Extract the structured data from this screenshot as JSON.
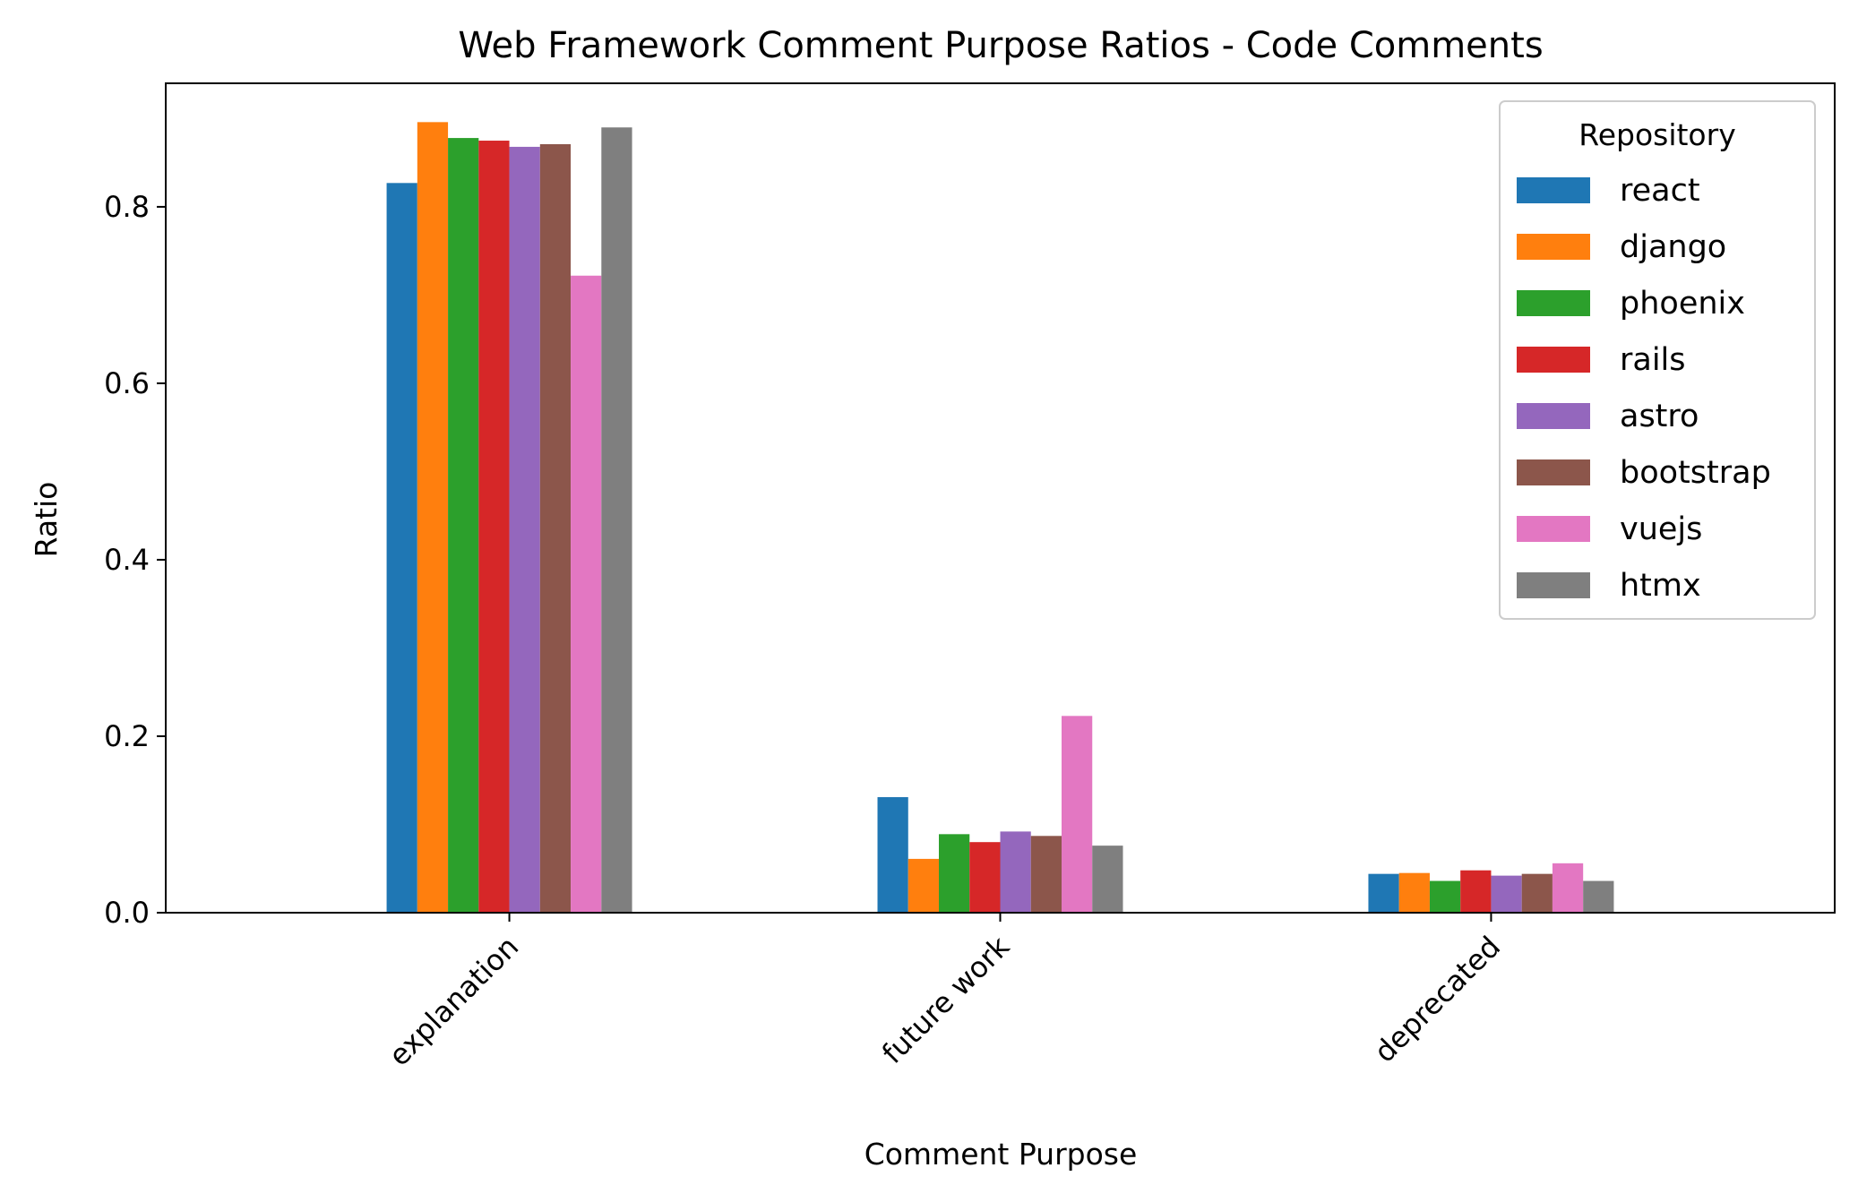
{
  "chart_data": {
    "type": "bar",
    "title": "Web Framework Comment Purpose Ratios - Code Comments",
    "xlabel": "Comment Purpose",
    "ylabel": "Ratio",
    "categories": [
      "explanation",
      "future work",
      "deprecated"
    ],
    "ylim": [
      0,
      0.94
    ],
    "yticks": [
      "0.0",
      "0.2",
      "0.4",
      "0.6",
      "0.8"
    ],
    "grid": false,
    "legend": {
      "title": "Repository",
      "placement": "top-right"
    },
    "series": [
      {
        "name": "react",
        "color": "#1f77b4",
        "values": [
          0.827,
          0.131,
          0.044
        ]
      },
      {
        "name": "django",
        "color": "#ff7f0e",
        "values": [
          0.896,
          0.061,
          0.045
        ]
      },
      {
        "name": "phoenix",
        "color": "#2ca02c",
        "values": [
          0.878,
          0.089,
          0.036
        ]
      },
      {
        "name": "rails",
        "color": "#d62728",
        "values": [
          0.875,
          0.08,
          0.048
        ]
      },
      {
        "name": "astro",
        "color": "#9467bd",
        "values": [
          0.868,
          0.092,
          0.042
        ]
      },
      {
        "name": "bootstrap",
        "color": "#8c564b",
        "values": [
          0.871,
          0.087,
          0.044
        ]
      },
      {
        "name": "vuejs",
        "color": "#e377c2",
        "values": [
          0.722,
          0.223,
          0.056
        ]
      },
      {
        "name": "htmx",
        "color": "#7f7f7f",
        "values": [
          0.89,
          0.076,
          0.036
        ]
      }
    ]
  }
}
